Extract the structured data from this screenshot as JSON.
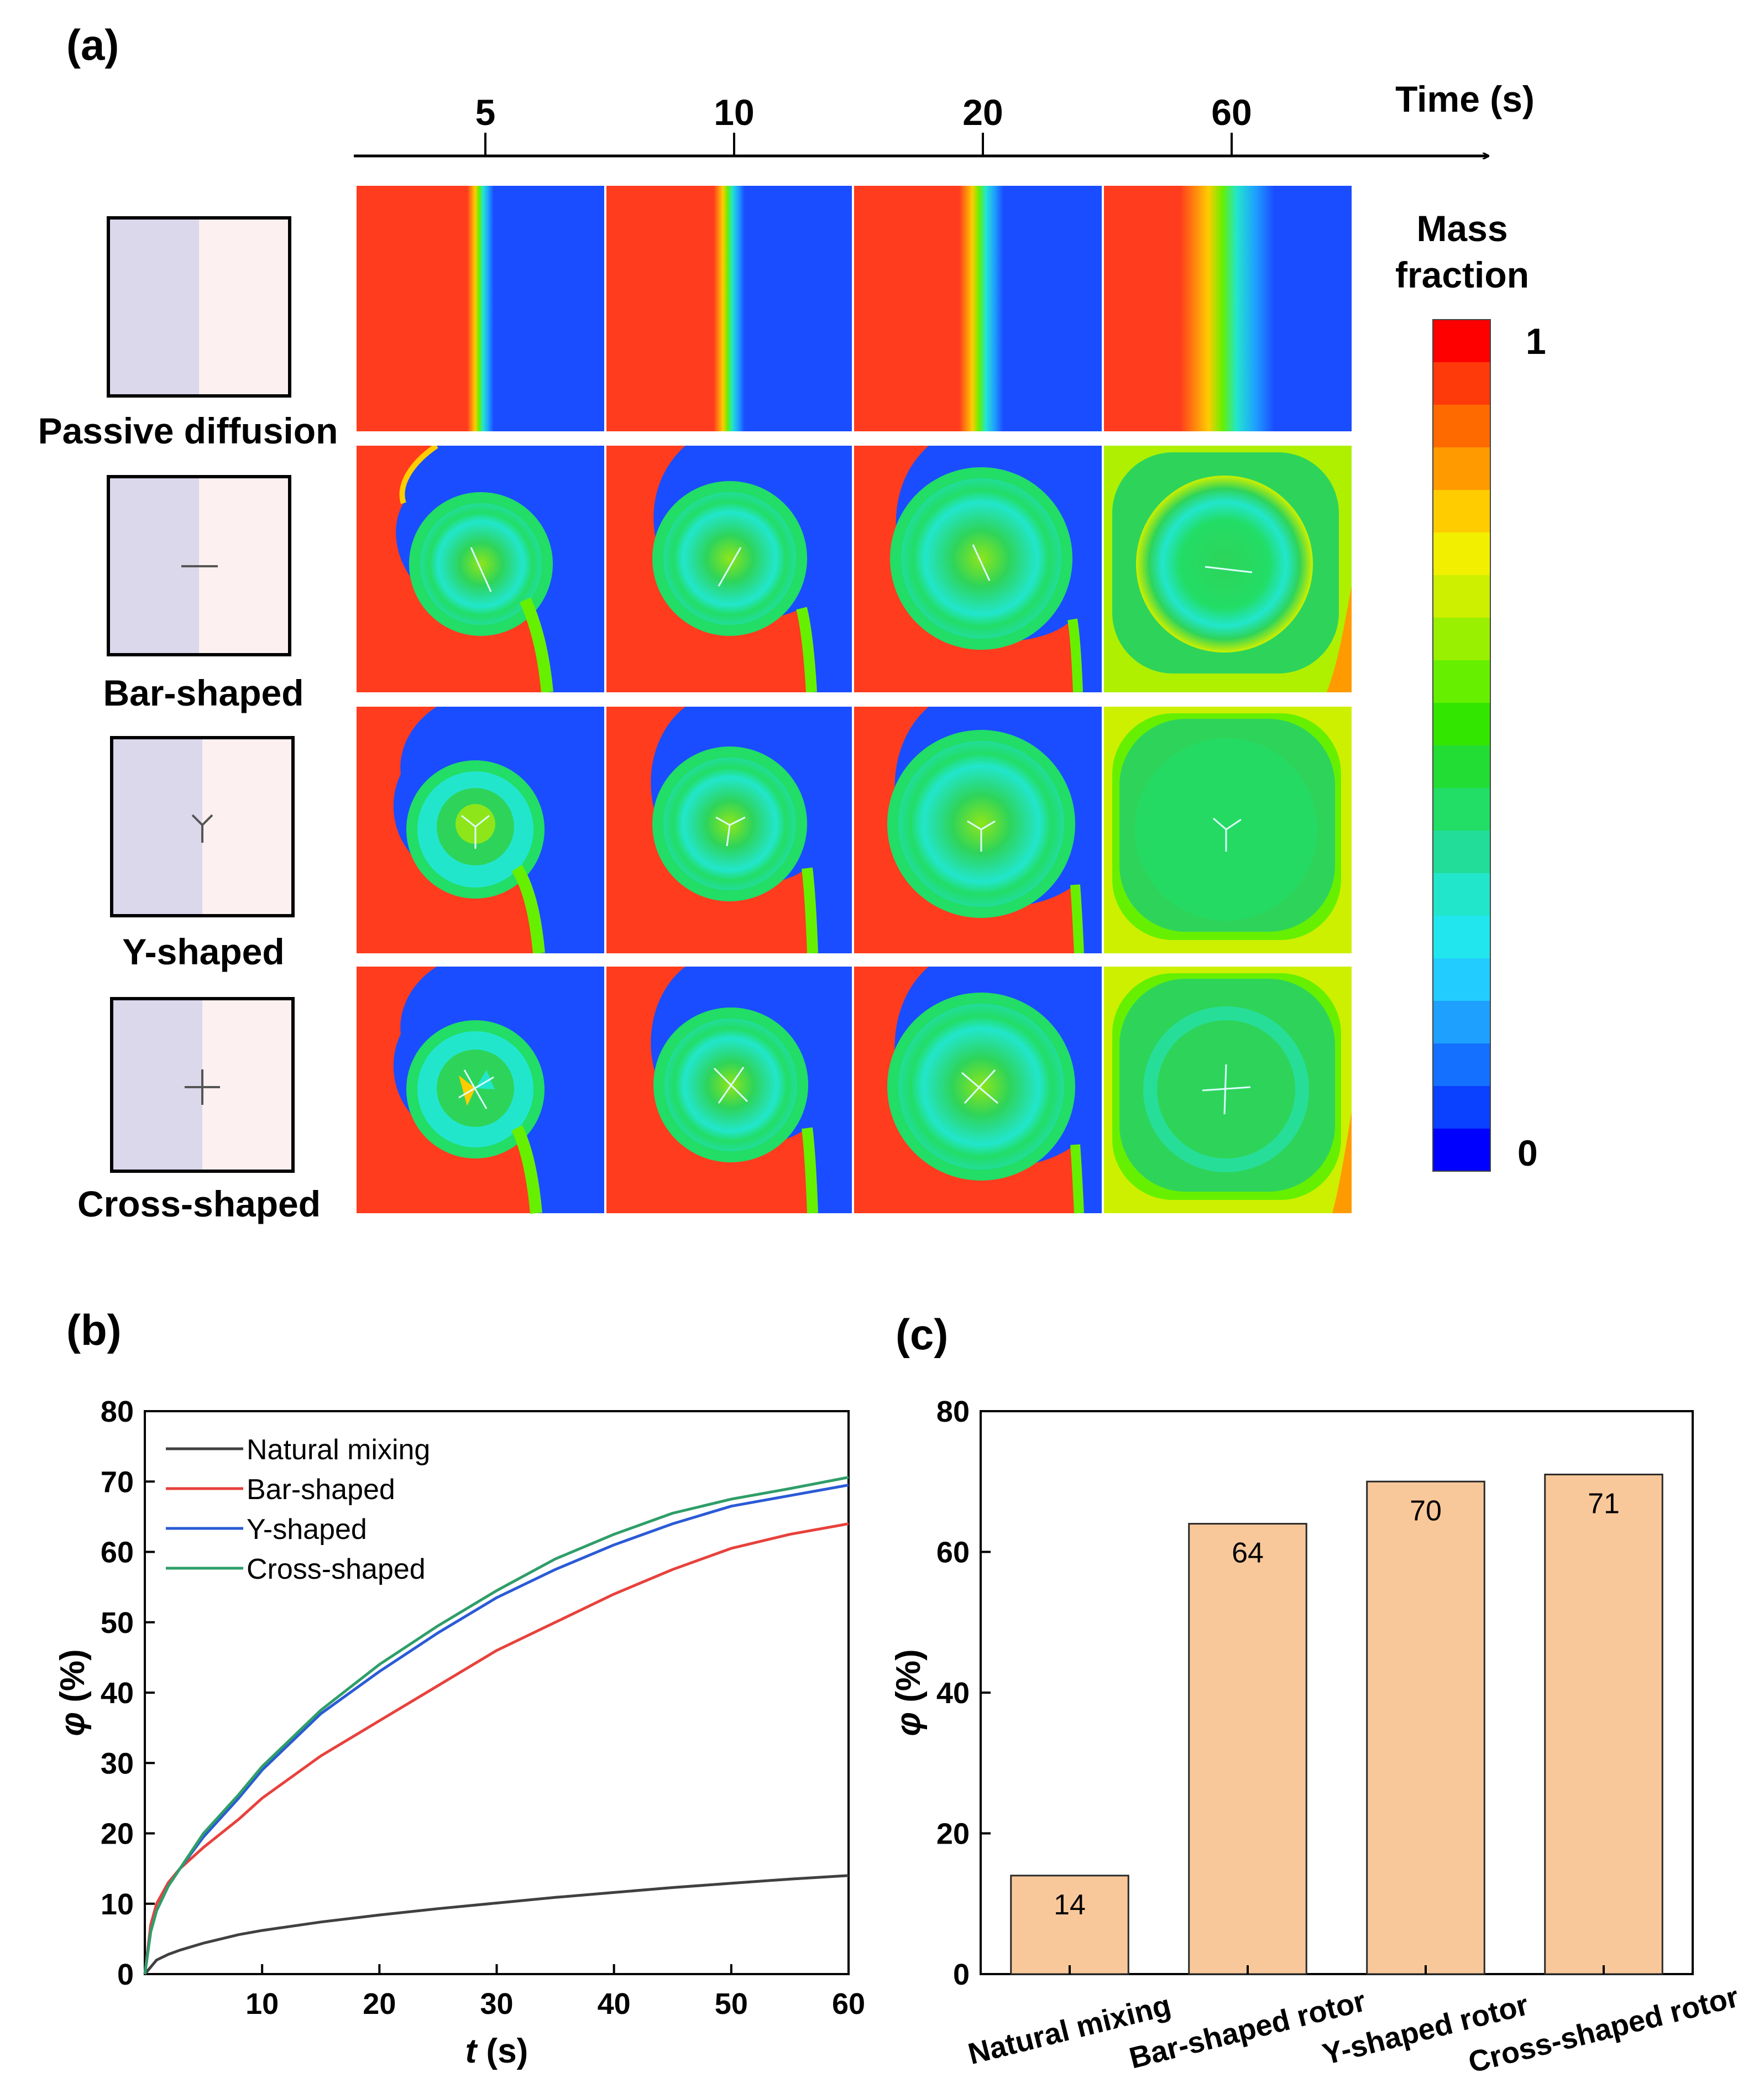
{
  "panel_a": {
    "label": "(a)",
    "time_axis_label": "Time (s)",
    "times": [
      "5",
      "10",
      "20",
      "60"
    ],
    "rows": [
      {
        "name": "Passive diffusion",
        "rotor": "none"
      },
      {
        "name": "Bar-shaped",
        "rotor": "bar"
      },
      {
        "name": "Y-shaped",
        "rotor": "y"
      },
      {
        "name": "Cross-shaped",
        "rotor": "cross"
      }
    ],
    "colorbar": {
      "title_line1": "Mass",
      "title_line2": "fraction",
      "max_label": "1",
      "min_label": "0",
      "colors": [
        "#ff0000",
        "#ff3a0a",
        "#ff6a00",
        "#ff9a00",
        "#ffcc00",
        "#f2f000",
        "#ccf000",
        "#99f000",
        "#66f000",
        "#33e600",
        "#22dd33",
        "#22dd66",
        "#22dd99",
        "#22e6cc",
        "#22e6ee",
        "#22ccff",
        "#1ea0ff",
        "#1470ff",
        "#0a40ff",
        "#0000ff"
      ]
    },
    "field_colors": {
      "high": "#ff3c1e",
      "low": "#1a4dff",
      "mixed": "#2ed45a",
      "mid": "#22e6cc"
    },
    "schematic_colors": {
      "left": "#dbd8ec",
      "right": "#fcf0f0"
    }
  },
  "panel_b": {
    "label": "(b)",
    "chart_data": {
      "type": "line",
      "xlabel_italic": "t",
      "xlabel_rest": " (s)",
      "ylabel_italic": "φ",
      "ylabel_rest": " (%)",
      "xlim": [
        0,
        60
      ],
      "ylim": [
        0,
        80
      ],
      "xticks": [
        10,
        20,
        30,
        40,
        50,
        60
      ],
      "yticks": [
        0,
        10,
        20,
        30,
        40,
        50,
        60,
        70,
        80
      ],
      "legend_position": "top-left",
      "series": [
        {
          "name": "Natural  mixing",
          "color": "#404040",
          "x": [
            0,
            1,
            2,
            3,
            5,
            8,
            10,
            15,
            20,
            25,
            30,
            35,
            40,
            45,
            50,
            55,
            60
          ],
          "y": [
            0,
            2,
            2.8,
            3.4,
            4.4,
            5.6,
            6.2,
            7.4,
            8.4,
            9.3,
            10.1,
            10.9,
            11.6,
            12.3,
            12.9,
            13.5,
            14.0
          ]
        },
        {
          "name": "Bar-shaped",
          "color": "#e8413c",
          "x": [
            0,
            0.5,
            1,
            2,
            3,
            5,
            8,
            10,
            15,
            20,
            25,
            30,
            35,
            40,
            45,
            50,
            55,
            60
          ],
          "y": [
            0,
            7,
            10,
            13,
            15,
            18,
            22,
            25,
            31,
            36,
            41,
            46,
            50,
            54,
            57.5,
            60.5,
            62.5,
            64
          ]
        },
        {
          "name": "Y-shaped",
          "color": "#2a5ad6",
          "x": [
            0,
            0.5,
            1,
            2,
            3,
            5,
            8,
            10,
            15,
            20,
            25,
            30,
            35,
            40,
            45,
            50,
            55,
            60
          ],
          "y": [
            0,
            6,
            9,
            12.5,
            15,
            19.5,
            25,
            29,
            37,
            43,
            48.5,
            53.5,
            57.5,
            61,
            64,
            66.5,
            68,
            69.5
          ]
        },
        {
          "name": "Cross-shaped",
          "color": "#2f9e69",
          "x": [
            0,
            0.5,
            1,
            2,
            3,
            5,
            8,
            10,
            15,
            20,
            25,
            30,
            35,
            40,
            45,
            50,
            55,
            60
          ],
          "y": [
            0,
            6,
            9,
            12.5,
            15,
            20,
            25.5,
            29.5,
            37.5,
            44,
            49.5,
            54.5,
            59,
            62.5,
            65.5,
            67.5,
            69,
            70.6
          ]
        }
      ]
    }
  },
  "panel_c": {
    "label": "(c)",
    "chart_data": {
      "type": "bar",
      "ylabel_italic": "φ",
      "ylabel_rest": " (%)",
      "ylim": [
        0,
        80
      ],
      "yticks": [
        0,
        20,
        40,
        60,
        80
      ],
      "categories": [
        "Natural mixing",
        "Bar-shaped rotor",
        "Y-shaped rotor",
        "Cross-shaped rotor"
      ],
      "values": [
        14,
        64,
        70,
        71
      ],
      "value_labels": [
        "14",
        "64",
        "70",
        "71"
      ],
      "bar_color": "#f9c89a",
      "bar_edge": "#2a2a2a"
    }
  }
}
